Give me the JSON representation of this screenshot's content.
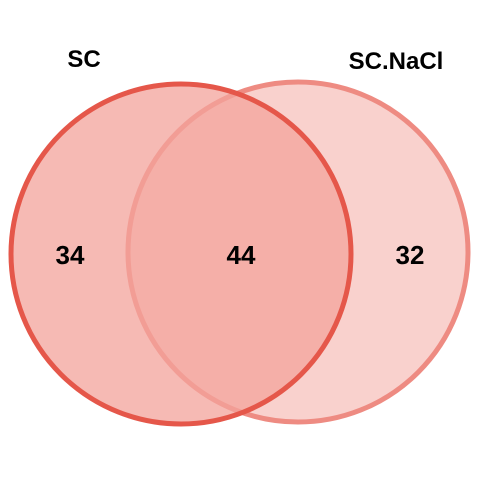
{
  "sets": [
    {
      "name": "SC",
      "fill": "#f3a39b",
      "stroke": "#e5574a"
    },
    {
      "name": "SC.NaCl",
      "fill": "#f6b8b2",
      "stroke": "#ee8b82"
    }
  ],
  "regions": {
    "sc_only": "34",
    "intersection": "44",
    "sc_nacl_only": "32"
  },
  "colors": {
    "background": "#ffffff",
    "text": "#000000"
  }
}
